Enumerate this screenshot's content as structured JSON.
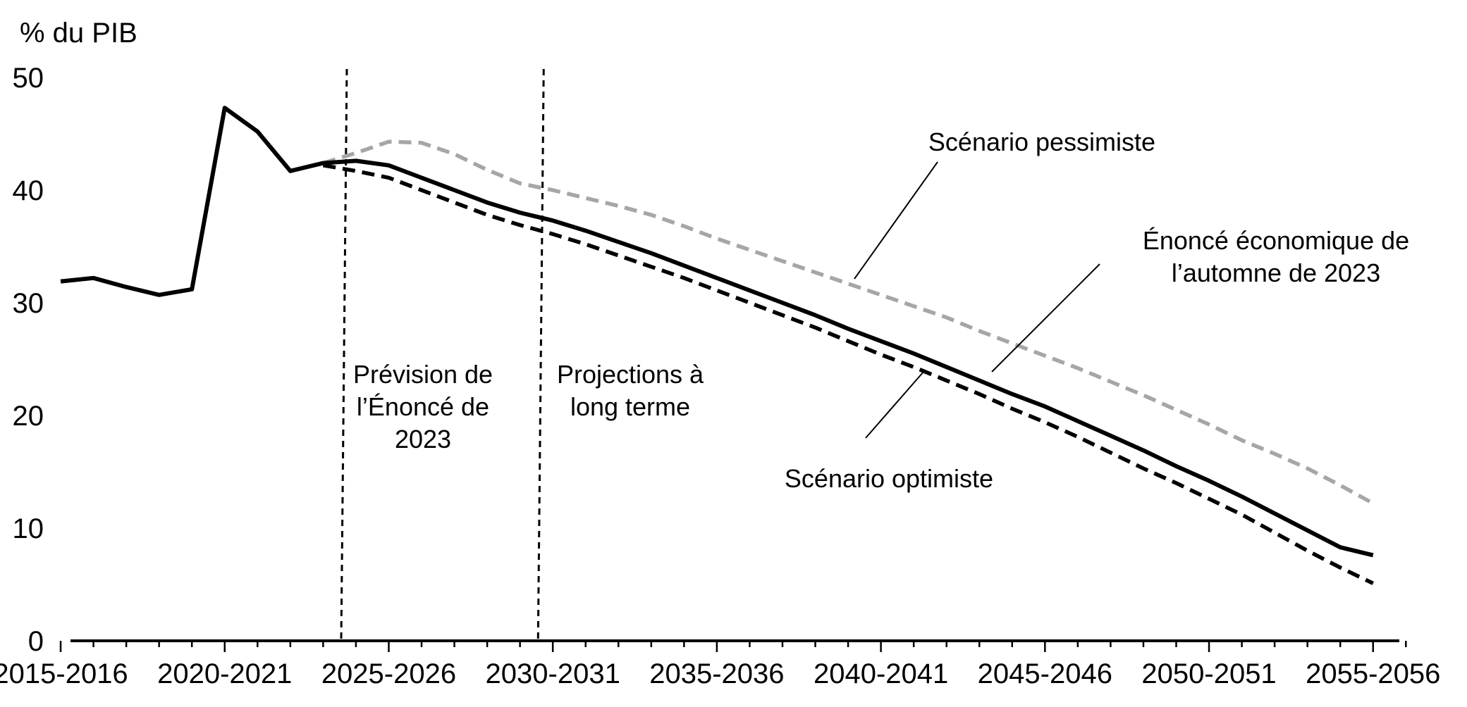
{
  "chart_data": {
    "type": "line",
    "ylabel": "% du PIB",
    "ylim": [
      0,
      50
    ],
    "yticks": [
      "0",
      "10",
      "20",
      "30",
      "40",
      "50"
    ],
    "xlim": [
      2015,
      2056
    ],
    "xticks": [
      {
        "x": 2015,
        "label": "2015-2016"
      },
      {
        "x": 2020,
        "label": "2020-2021"
      },
      {
        "x": 2025,
        "label": "2025-2026"
      },
      {
        "x": 2030,
        "label": "2030-2031"
      },
      {
        "x": 2035,
        "label": "2035-2036"
      },
      {
        "x": 2040,
        "label": "2040-2041"
      },
      {
        "x": 2045,
        "label": "2045-2046"
      },
      {
        "x": 2050,
        "label": "2050-2051"
      },
      {
        "x": 2055,
        "label": "2055-2056"
      }
    ],
    "vlines": [
      2023,
      2029
    ],
    "period_labels": {
      "forecast": [
        "Prévision de",
        "l’Énoncé de",
        "2023"
      ],
      "projections": [
        "Projections à",
        "long terme"
      ]
    },
    "series": [
      {
        "name": "Scénario pessimiste",
        "style": "dashed",
        "color": "#a6a6a6",
        "x": [
          2023,
          2024,
          2025,
          2026,
          2027,
          2028,
          2029,
          2030,
          2031,
          2032,
          2033,
          2034,
          2035,
          2036,
          2037,
          2038,
          2039,
          2040,
          2041,
          2042,
          2043,
          2044,
          2045,
          2046,
          2047,
          2048,
          2049,
          2050,
          2051,
          2052,
          2053,
          2054,
          2055
        ],
        "y": [
          42.4,
          43.3,
          44.3,
          44.2,
          43.2,
          41.8,
          40.6,
          40.0,
          39.3,
          38.6,
          37.8,
          36.8,
          35.7,
          34.7,
          33.7,
          32.7,
          31.7,
          30.7,
          29.7,
          28.7,
          27.5,
          26.4,
          25.3,
          24.2,
          23.0,
          21.8,
          20.5,
          19.2,
          17.8,
          16.6,
          15.3,
          13.8,
          12.2
        ]
      },
      {
        "name": "Énoncé économique de l’automne de 2023",
        "style": "solid",
        "color": "#000000",
        "x": [
          2015,
          2016,
          2017,
          2018,
          2019,
          2020,
          2021,
          2022,
          2023,
          2024,
          2025,
          2026,
          2027,
          2028,
          2029,
          2030,
          2031,
          2032,
          2033,
          2034,
          2035,
          2036,
          2037,
          2038,
          2039,
          2040,
          2041,
          2042,
          2043,
          2044,
          2045,
          2046,
          2047,
          2048,
          2049,
          2050,
          2051,
          2052,
          2053,
          2054,
          2055
        ],
        "y": [
          31.9,
          32.2,
          31.4,
          30.7,
          31.2,
          47.3,
          45.2,
          41.7,
          42.4,
          42.6,
          42.2,
          41.1,
          40.0,
          38.9,
          38.0,
          37.3,
          36.4,
          35.4,
          34.4,
          33.3,
          32.2,
          31.1,
          30.0,
          28.9,
          27.7,
          26.6,
          25.5,
          24.3,
          23.1,
          21.9,
          20.8,
          19.5,
          18.2,
          16.9,
          15.5,
          14.2,
          12.8,
          11.3,
          9.8,
          8.3,
          7.6
        ]
      },
      {
        "name": "Scénario optimiste",
        "style": "dashed",
        "color": "#000000",
        "x": [
          2023,
          2024,
          2025,
          2026,
          2027,
          2028,
          2029,
          2030,
          2031,
          2032,
          2033,
          2034,
          2035,
          2036,
          2037,
          2038,
          2039,
          2040,
          2041,
          2042,
          2043,
          2044,
          2045,
          2046,
          2047,
          2048,
          2049,
          2050,
          2051,
          2052,
          2053,
          2054,
          2055
        ],
        "y": [
          42.2,
          41.7,
          41.1,
          40.0,
          38.9,
          37.8,
          36.9,
          36.1,
          35.2,
          34.2,
          33.2,
          32.2,
          31.1,
          30.0,
          28.9,
          27.8,
          26.6,
          25.4,
          24.3,
          23.1,
          21.9,
          20.6,
          19.4,
          18.1,
          16.7,
          15.3,
          14.0,
          12.6,
          11.2,
          9.6,
          8.0,
          6.5,
          5.1
        ]
      }
    ],
    "annotations": [
      {
        "lines": [
          "Scénario pessimiste"
        ],
        "series": 0
      },
      {
        "lines": [
          "Énoncé économique de",
          "l’automne de 2023"
        ],
        "series": 1
      },
      {
        "lines": [
          "Scénario optimiste"
        ],
        "series": 2
      }
    ]
  }
}
